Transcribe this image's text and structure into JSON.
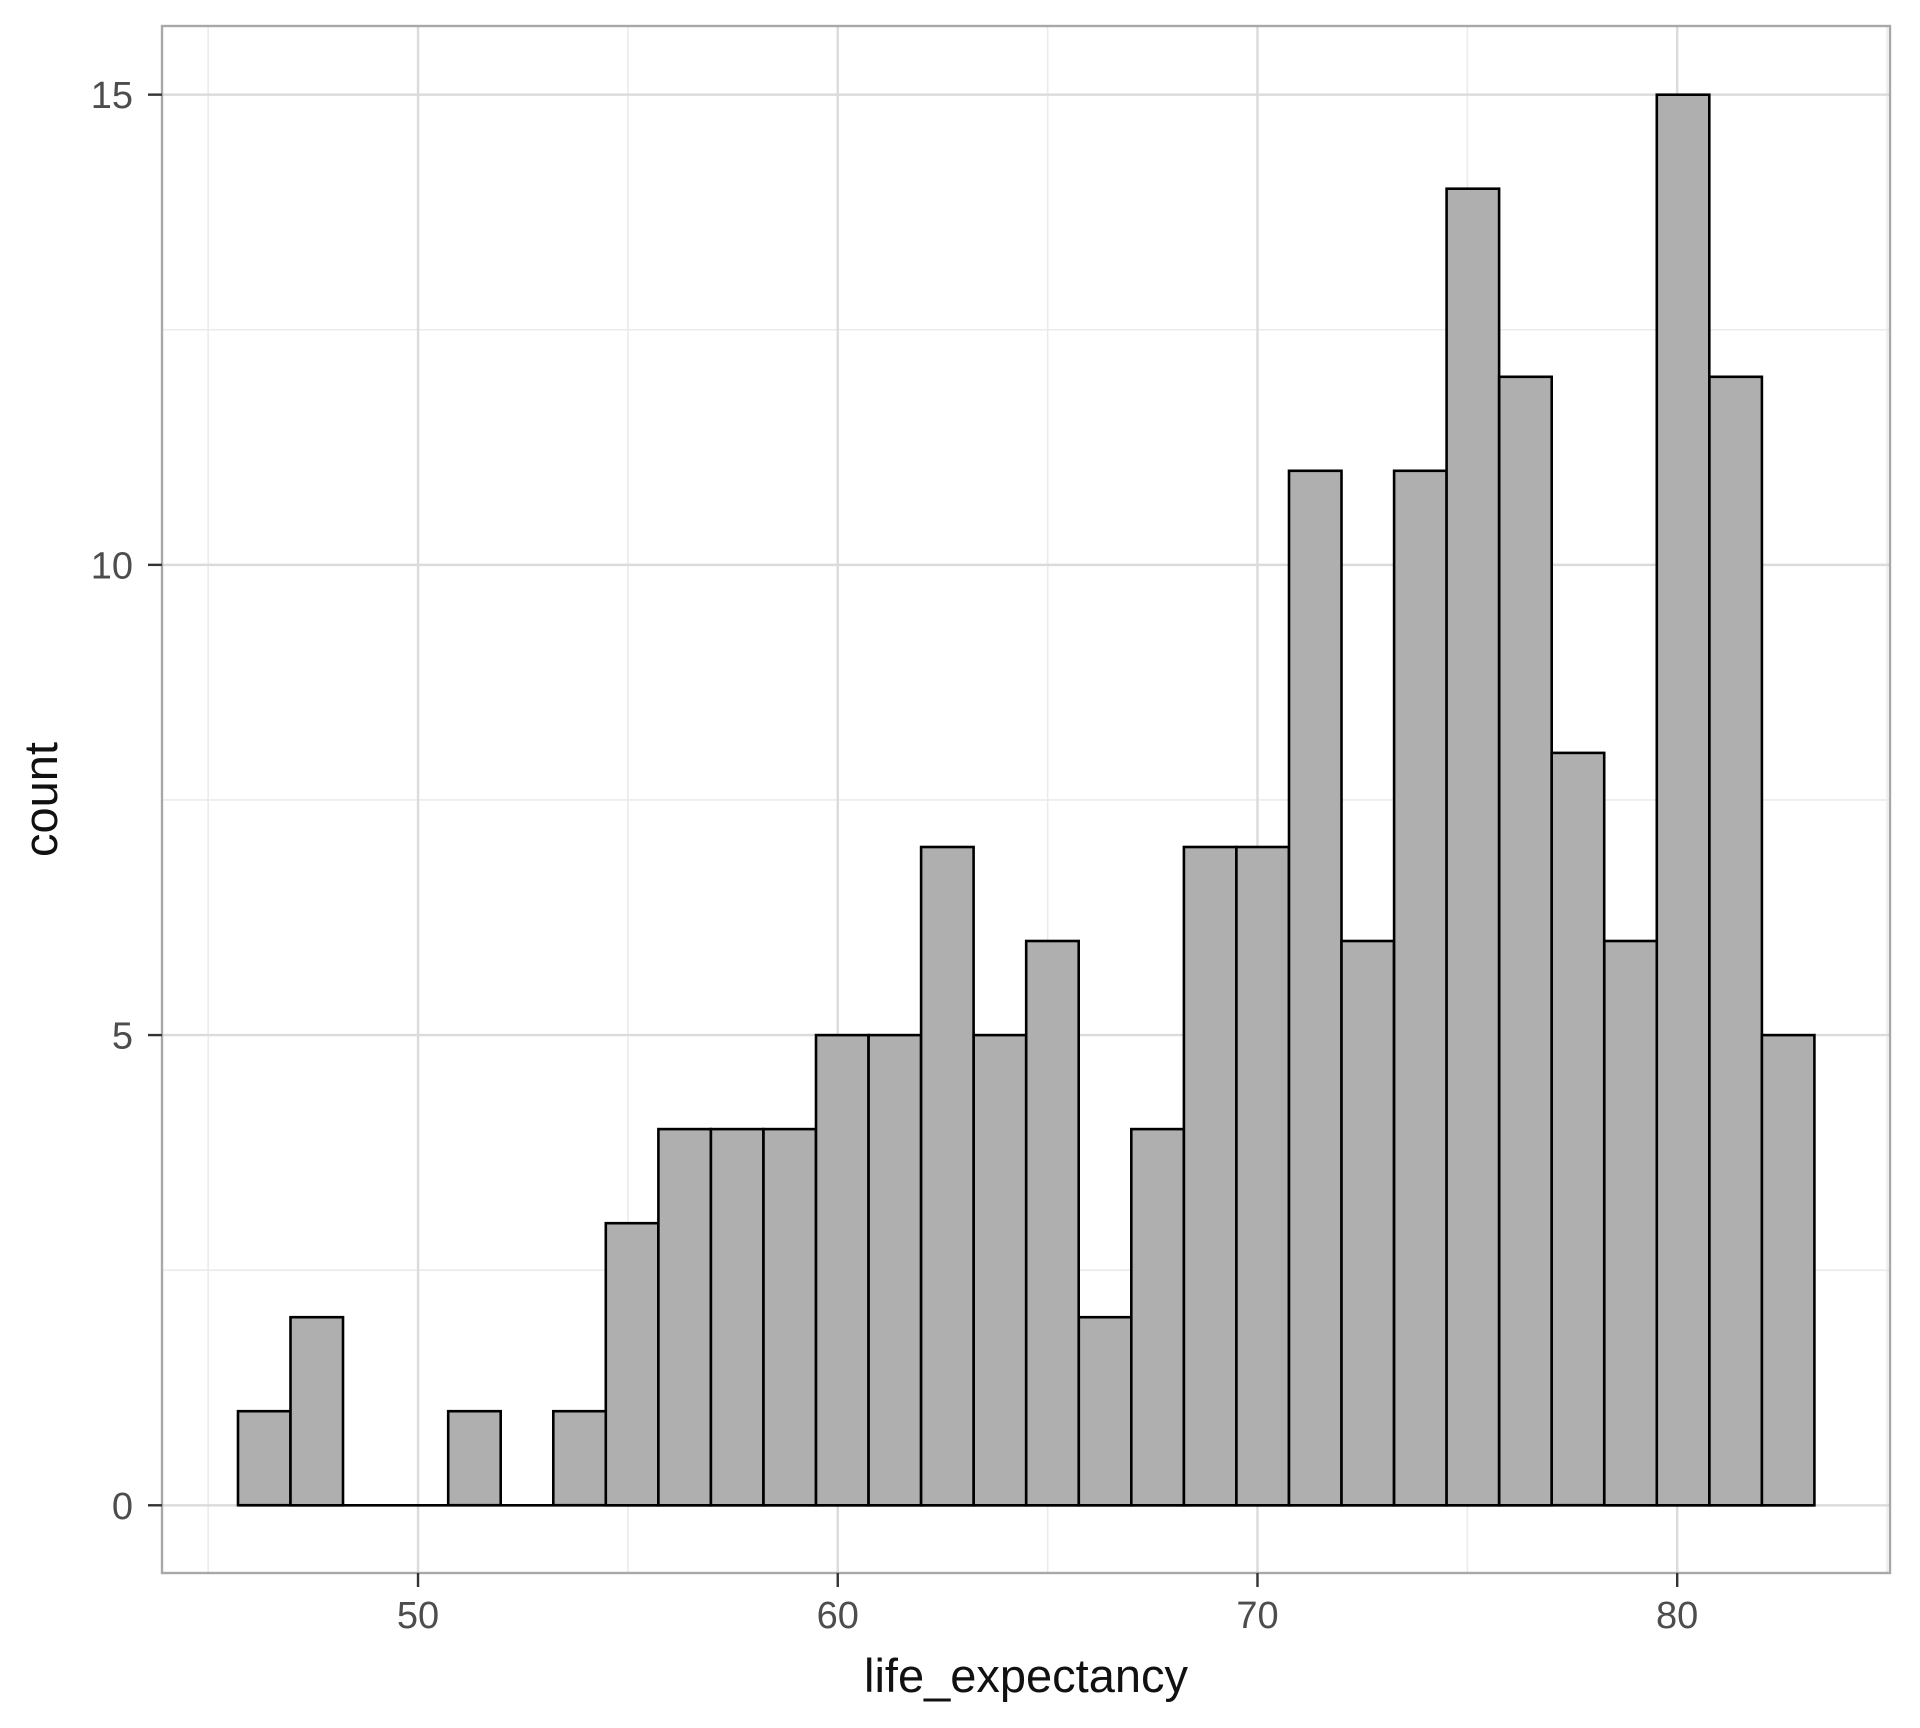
{
  "chart_data": {
    "type": "histogram",
    "title": "",
    "xlabel": "life_expectancy",
    "ylabel": "count",
    "bin_start": 45.71,
    "bin_width": 1.252,
    "counts": [
      1,
      2,
      0,
      0,
      1,
      0,
      1,
      3,
      4,
      4,
      4,
      5,
      5,
      7,
      5,
      6,
      2,
      4,
      7,
      7,
      11,
      6,
      11,
      14,
      12,
      8,
      6,
      15,
      12,
      5
    ],
    "x_axis": {
      "label": "life_expectancy",
      "ticks": [
        50,
        60,
        70,
        80
      ],
      "tick_labels": [
        "50",
        "60",
        "70",
        "80"
      ],
      "minor_ticks": [
        45,
        55,
        65,
        75,
        85
      ],
      "range": [
        43.9,
        85.07
      ]
    },
    "y_axis": {
      "label": "count",
      "ticks": [
        0,
        5,
        10,
        15
      ],
      "tick_labels": [
        "0",
        "5",
        "10",
        "15"
      ],
      "minor_ticks": [
        2.5,
        7.5,
        12.5
      ],
      "range": [
        -0.72,
        15.73
      ]
    },
    "grid": "major+minor",
    "legend": false,
    "style": {
      "background": "#FFFFFF",
      "panel_background": "#FFFFFF",
      "bar_fill": "#AFAFAF",
      "bar_stroke": "#000000",
      "grid_major": "#DBDBDB",
      "grid_minor": "#EBEBEB",
      "panel_border": "#A8A8A8",
      "tick_color": "#333333",
      "tick_label_color": "#4D4D4D",
      "axis_title_color": "#111111"
    }
  }
}
